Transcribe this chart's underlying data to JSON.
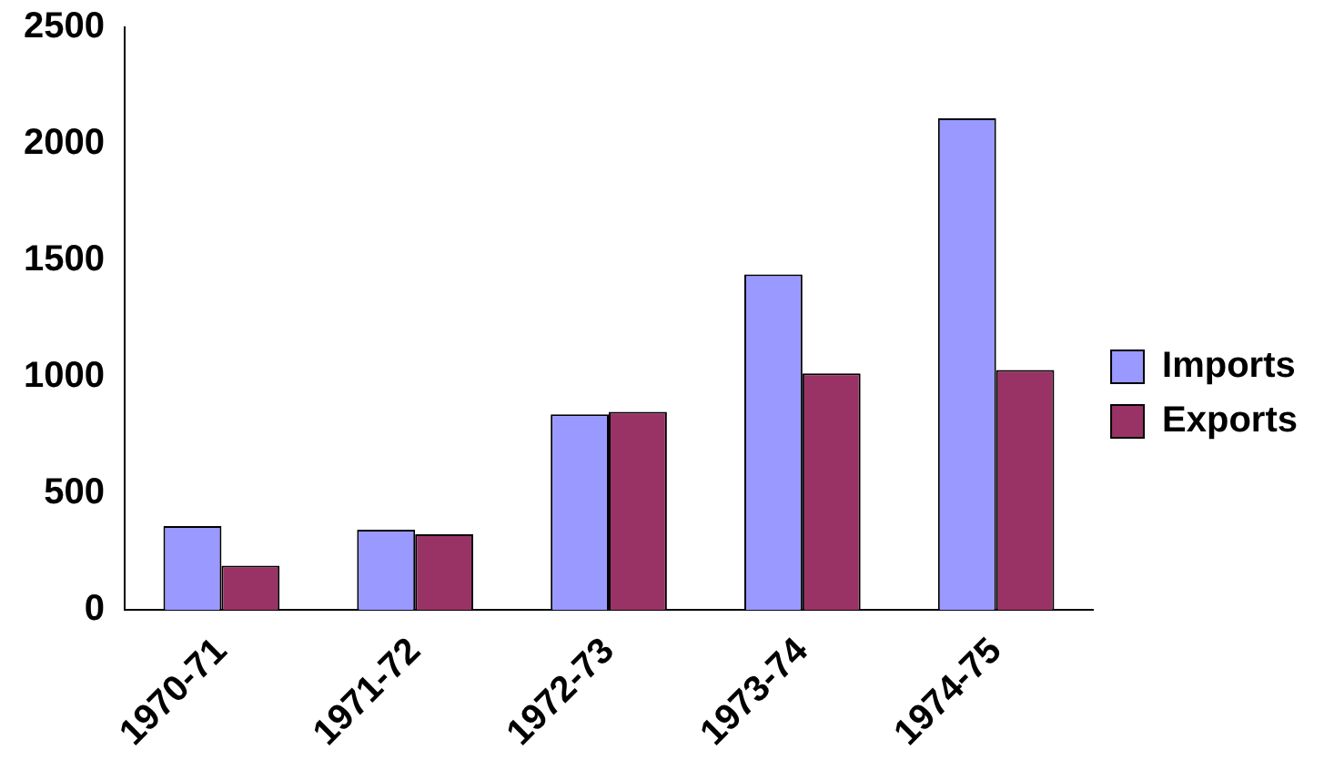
{
  "chart_data": {
    "type": "bar",
    "categories": [
      "1970-71",
      "1971-72",
      "1972-73",
      "1973-74",
      "1974-75"
    ],
    "series": [
      {
        "name": "Imports",
        "color": "#9999ff",
        "values": [
          360,
          345,
          840,
          1440,
          2110
        ]
      },
      {
        "name": "Exports",
        "color": "#993366",
        "values": [
          190,
          325,
          850,
          1015,
          1030
        ]
      }
    ],
    "ylim": [
      0,
      2500
    ],
    "yticks": [
      0,
      500,
      1000,
      1500,
      2000,
      2500
    ],
    "grid": false,
    "legend": "right"
  }
}
